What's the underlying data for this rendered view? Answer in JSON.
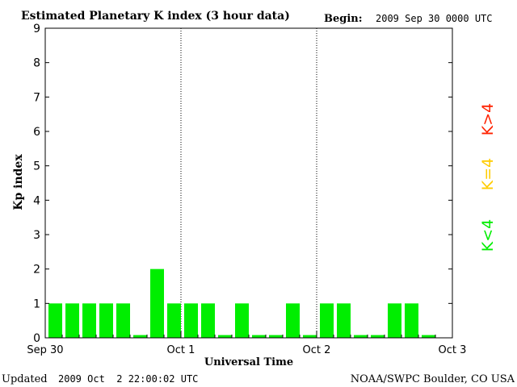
{
  "header": {
    "title": "Estimated Planetary K index (3 hour data)",
    "begin_label": "Begin:",
    "begin_value": "2009 Sep 30 0000 UTC"
  },
  "footer": {
    "updated_label": "Updated",
    "updated_value": "2009 Oct  2 22:00:02 UTC",
    "source": "NOAA/SWPC Boulder, CO USA"
  },
  "legend": {
    "low": {
      "label": "K<4",
      "color": "#00ee00"
    },
    "mid": {
      "label": "K=4",
      "color": "#ffcc00"
    },
    "high": {
      "label": "K>4",
      "color": "#ff2200"
    }
  },
  "chart_data": {
    "type": "bar",
    "title": "Estimated Planetary K index (3 hour data)",
    "xlabel": "Universal Time",
    "ylabel": "Kp index",
    "ylim": [
      0,
      9
    ],
    "yticks": [
      "0",
      "1",
      "2",
      "3",
      "4",
      "5",
      "6",
      "7",
      "8",
      "9"
    ],
    "xticks": [
      "Sep 30",
      "Oct 1",
      "Oct 2",
      "Oct 3"
    ],
    "bins_per_day": 8,
    "days": 3,
    "values": [
      1,
      1,
      1,
      1,
      1,
      0,
      2,
      1,
      1,
      1,
      0,
      1,
      0,
      0,
      1,
      0,
      1,
      1,
      0,
      0,
      1,
      1,
      0
    ],
    "day_separators": "dotted",
    "bar_color": "#00ee00"
  }
}
